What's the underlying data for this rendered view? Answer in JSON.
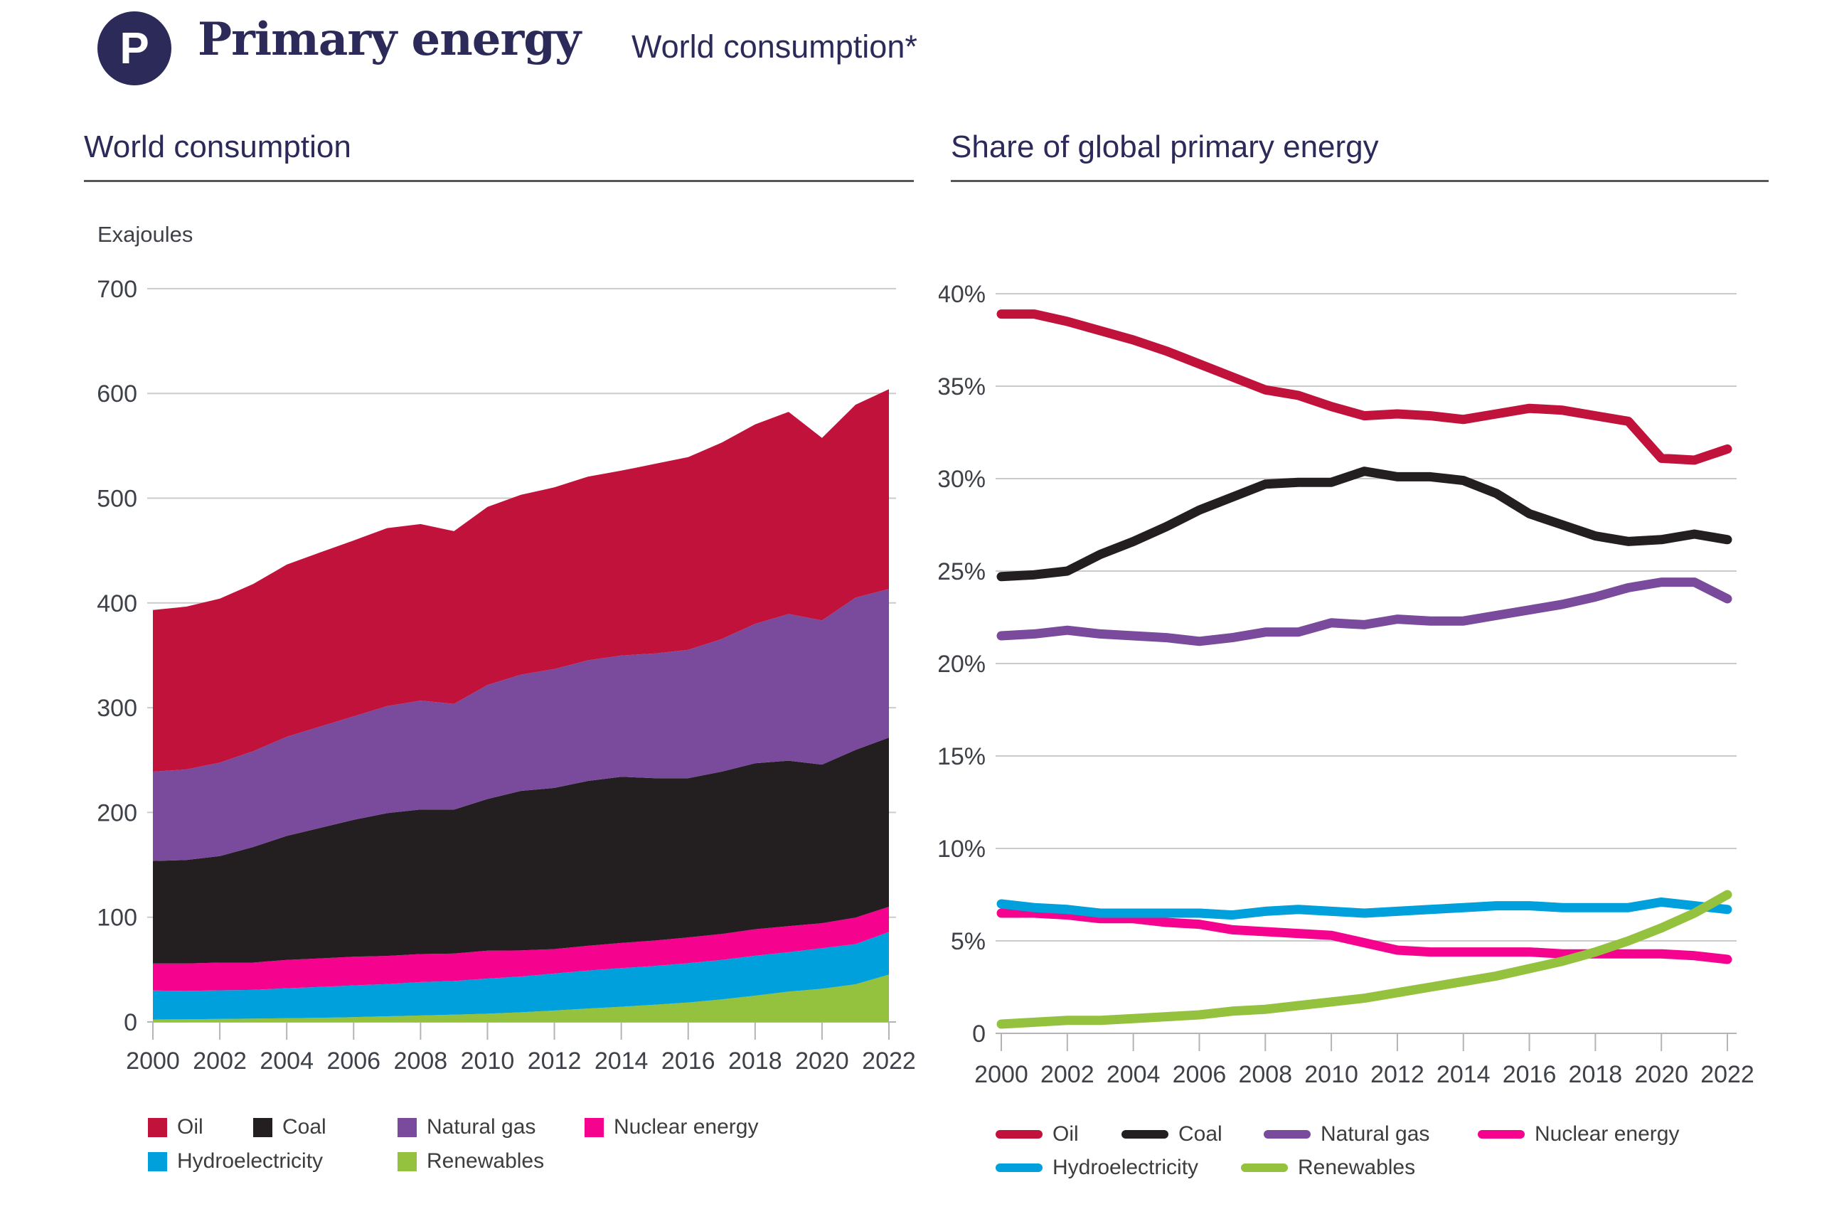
{
  "header": {
    "badge_letter": "P",
    "title": "Primary energy",
    "subtitle": "World consumption*"
  },
  "colors": {
    "navy": "#2b2a59",
    "grid": "#cbcbcb",
    "axis": "#b4b4b4",
    "tick_label": "#3e4148",
    "underline": "#55565a",
    "oil": "#c1123c",
    "coal": "#231f20",
    "natural_gas": "#7a4a9c",
    "nuclear": "#f5038f",
    "hydro": "#00a0dc",
    "renewables": "#94c13e"
  },
  "left_chart": {
    "section_title": "World consumption",
    "unit_label": "Exajoules",
    "y_ticks": [
      {
        "v": 700,
        "label": "700"
      },
      {
        "v": 600,
        "label": "600"
      },
      {
        "v": 500,
        "label": "500"
      },
      {
        "v": 400,
        "label": "400"
      },
      {
        "v": 300,
        "label": "300"
      },
      {
        "v": 200,
        "label": "200"
      },
      {
        "v": 100,
        "label": "100"
      },
      {
        "v": 0,
        "label": "0"
      }
    ],
    "x_ticks": [
      {
        "v": 2000,
        "label": "2000"
      },
      {
        "v": 2002,
        "label": "2002"
      },
      {
        "v": 2004,
        "label": "2004"
      },
      {
        "v": 2006,
        "label": "2006"
      },
      {
        "v": 2008,
        "label": "2008"
      },
      {
        "v": 2010,
        "label": "2010"
      },
      {
        "v": 2012,
        "label": "2012"
      },
      {
        "v": 2014,
        "label": "2014"
      },
      {
        "v": 2016,
        "label": "2016"
      },
      {
        "v": 2018,
        "label": "2018"
      },
      {
        "v": 2020,
        "label": "2020"
      },
      {
        "v": 2022,
        "label": "2022"
      }
    ]
  },
  "right_chart": {
    "section_title": "Share of global primary energy",
    "y_ticks": [
      {
        "v": 40,
        "label": "40%"
      },
      {
        "v": 35,
        "label": "35%"
      },
      {
        "v": 30,
        "label": "30%"
      },
      {
        "v": 25,
        "label": "25%"
      },
      {
        "v": 20,
        "label": "20%"
      },
      {
        "v": 15,
        "label": "15%"
      },
      {
        "v": 10,
        "label": "10%"
      },
      {
        "v": 5,
        "label": "5%"
      },
      {
        "v": 0,
        "label": "0"
      }
    ],
    "x_ticks": [
      {
        "v": 2000,
        "label": "2000"
      },
      {
        "v": 2002,
        "label": "2002"
      },
      {
        "v": 2004,
        "label": "2004"
      },
      {
        "v": 2006,
        "label": "2006"
      },
      {
        "v": 2008,
        "label": "2008"
      },
      {
        "v": 2010,
        "label": "2010"
      },
      {
        "v": 2012,
        "label": "2012"
      },
      {
        "v": 2014,
        "label": "2014"
      },
      {
        "v": 2016,
        "label": "2016"
      },
      {
        "v": 2018,
        "label": "2018"
      },
      {
        "v": 2020,
        "label": "2020"
      },
      {
        "v": 2022,
        "label": "2022"
      }
    ]
  },
  "chart_data": [
    {
      "type": "area",
      "title": "World consumption",
      "ylabel": "Exajoules",
      "xlabel": "",
      "ylim": [
        0,
        700
      ],
      "grid": true,
      "legend_position": "bottom",
      "x": [
        2000,
        2001,
        2002,
        2003,
        2004,
        2005,
        2006,
        2007,
        2008,
        2009,
        2010,
        2011,
        2012,
        2013,
        2014,
        2015,
        2016,
        2017,
        2018,
        2019,
        2020,
        2021,
        2022
      ],
      "stack_order_bottom_to_top": [
        "Renewables",
        "Hydroelectricity",
        "Nuclear energy",
        "Coal",
        "Natural gas",
        "Oil"
      ],
      "series": [
        {
          "name": "Oil",
          "color": "#c1123c",
          "values": [
            154.3,
            155.4,
            156.6,
            159.6,
            164.4,
            166.3,
            167.9,
            169.9,
            168.5,
            164.9,
            170.0,
            171.6,
            173.4,
            175.4,
            176.5,
            181.0,
            184.0,
            187.5,
            190.5,
            193.0,
            174.2,
            184.2,
            190.7
          ]
        },
        {
          "name": "Coal",
          "color": "#231f20",
          "values": [
            97.9,
            98.8,
            101.7,
            110.3,
            118.3,
            124.6,
            130.7,
            136.2,
            138.0,
            137.4,
            144.8,
            152.3,
            153.8,
            157.4,
            158.7,
            155.0,
            152.0,
            155.0,
            158.5,
            157.9,
            151.4,
            160.1,
            161.5
          ]
        },
        {
          "name": "Natural gas",
          "color": "#7a4a9c",
          "values": [
            85.3,
            86.5,
            89.1,
            91.5,
            94.6,
            96.7,
            98.7,
            102.2,
            104.0,
            100.9,
            108.9,
            111.0,
            113.5,
            115.1,
            115.7,
            119.0,
            122.5,
            126.5,
            133.0,
            140.0,
            137.6,
            145.3,
            141.9
          ]
        },
        {
          "name": "Nuclear energy",
          "color": "#f5038f",
          "values": [
            25.7,
            26.2,
            26.5,
            26.1,
            27.1,
            27.2,
            27.4,
            26.9,
            26.7,
            26.2,
            26.6,
            24.9,
            23.4,
            23.7,
            24.0,
            24.3,
            24.6,
            24.8,
            25.3,
            24.9,
            23.9,
            25.3,
            24.1
          ]
        },
        {
          "name": "Hydroelectricity",
          "color": "#00a0dc",
          "values": [
            27.7,
            27.0,
            27.3,
            27.4,
            28.6,
            29.5,
            30.3,
            30.8,
            31.9,
            32.1,
            33.5,
            34.2,
            35.3,
            36.2,
            36.9,
            36.9,
            37.5,
            37.7,
            38.1,
            37.6,
            38.7,
            38.3,
            40.7
          ]
        },
        {
          "name": "Renewables",
          "color": "#94c13e",
          "values": [
            2.4,
            2.6,
            2.9,
            3.2,
            3.6,
            4.0,
            4.6,
            5.4,
            6.2,
            7.0,
            7.9,
            9.2,
            10.9,
            12.8,
            14.5,
            16.5,
            18.6,
            21.5,
            25.1,
            29.0,
            31.7,
            36.0,
            45.2
          ]
        }
      ]
    },
    {
      "type": "line",
      "title": "Share of global primary energy",
      "ylabel": "",
      "xlabel": "",
      "ylim": [
        0,
        40
      ],
      "grid": true,
      "legend_position": "bottom",
      "x": [
        2000,
        2001,
        2002,
        2003,
        2004,
        2005,
        2006,
        2007,
        2008,
        2009,
        2010,
        2011,
        2012,
        2013,
        2014,
        2015,
        2016,
        2017,
        2018,
        2019,
        2020,
        2021,
        2022
      ],
      "draw_order": [
        "Oil",
        "Coal",
        "Natural gas",
        "Nuclear energy",
        "Hydroelectricity",
        "Renewables"
      ],
      "series": [
        {
          "name": "Oil",
          "color": "#c1123c",
          "values": [
            38.9,
            38.9,
            38.5,
            38.0,
            37.5,
            36.9,
            36.2,
            35.5,
            34.8,
            34.5,
            33.9,
            33.4,
            33.5,
            33.4,
            33.2,
            33.5,
            33.8,
            33.7,
            33.4,
            33.1,
            31.1,
            31.0,
            31.6
          ]
        },
        {
          "name": "Coal",
          "color": "#231f20",
          "values": [
            24.7,
            24.8,
            25.0,
            25.9,
            26.6,
            27.4,
            28.3,
            29.0,
            29.7,
            29.8,
            29.8,
            30.4,
            30.1,
            30.1,
            29.9,
            29.2,
            28.1,
            27.5,
            26.9,
            26.6,
            26.7,
            27.0,
            26.7
          ]
        },
        {
          "name": "Natural gas",
          "color": "#7a4a9c",
          "values": [
            21.5,
            21.6,
            21.8,
            21.6,
            21.5,
            21.4,
            21.2,
            21.4,
            21.7,
            21.7,
            22.2,
            22.1,
            22.4,
            22.3,
            22.3,
            22.6,
            22.9,
            23.2,
            23.6,
            24.1,
            24.4,
            24.4,
            23.5
          ]
        },
        {
          "name": "Nuclear energy",
          "color": "#f5038f",
          "values": [
            6.5,
            6.5,
            6.4,
            6.2,
            6.2,
            6.0,
            5.9,
            5.6,
            5.5,
            5.4,
            5.3,
            4.9,
            4.5,
            4.4,
            4.4,
            4.4,
            4.4,
            4.3,
            4.3,
            4.3,
            4.3,
            4.2,
            4.0
          ]
        },
        {
          "name": "Hydroelectricity",
          "color": "#00a0dc",
          "values": [
            7.0,
            6.8,
            6.7,
            6.5,
            6.5,
            6.5,
            6.5,
            6.4,
            6.6,
            6.7,
            6.6,
            6.5,
            6.6,
            6.7,
            6.8,
            6.9,
            6.9,
            6.8,
            6.8,
            6.8,
            7.1,
            6.9,
            6.7
          ]
        },
        {
          "name": "Renewables",
          "color": "#94c13e",
          "values": [
            0.5,
            0.6,
            0.7,
            0.7,
            0.8,
            0.9,
            1.0,
            1.2,
            1.3,
            1.5,
            1.7,
            1.9,
            2.2,
            2.5,
            2.8,
            3.1,
            3.5,
            3.9,
            4.4,
            5.0,
            5.7,
            6.5,
            7.5
          ]
        }
      ]
    }
  ]
}
